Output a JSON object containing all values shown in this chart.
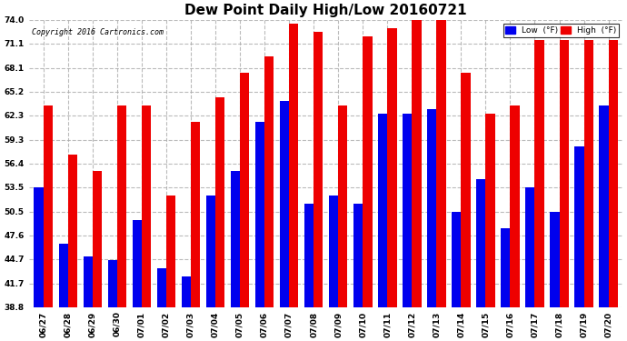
{
  "title": "Dew Point Daily High/Low 20160721",
  "copyright": "Copyright 2016 Cartronics.com",
  "categories": [
    "06/27",
    "06/28",
    "06/29",
    "06/30",
    "07/01",
    "07/02",
    "07/03",
    "07/04",
    "07/05",
    "07/06",
    "07/07",
    "07/08",
    "07/09",
    "07/10",
    "07/11",
    "07/12",
    "07/13",
    "07/14",
    "07/15",
    "07/16",
    "07/17",
    "07/18",
    "07/19",
    "07/20"
  ],
  "low_values": [
    53.5,
    46.5,
    45.0,
    44.5,
    49.5,
    43.5,
    42.5,
    52.5,
    55.5,
    61.5,
    64.0,
    51.5,
    52.5,
    51.5,
    62.5,
    62.5,
    63.0,
    50.5,
    54.5,
    48.5,
    53.5,
    50.5,
    58.5,
    63.5
  ],
  "high_values": [
    63.5,
    57.5,
    55.5,
    63.5,
    63.5,
    52.5,
    61.5,
    64.5,
    67.5,
    69.5,
    73.5,
    72.5,
    63.5,
    72.0,
    73.0,
    74.5,
    75.5,
    67.5,
    62.5,
    63.5,
    71.5,
    71.5,
    71.5,
    71.5
  ],
  "low_color": "#0000ee",
  "high_color": "#ee0000",
  "bg_color": "#ffffff",
  "ylim_min": 38.8,
  "ylim_max": 74.0,
  "yticks": [
    38.8,
    41.7,
    44.7,
    47.6,
    50.5,
    53.5,
    56.4,
    59.3,
    62.3,
    65.2,
    68.1,
    71.1,
    74.0
  ],
  "bar_width": 0.38,
  "title_fontsize": 11,
  "tick_fontsize": 6.5,
  "legend_label_low": "Low  (°F)",
  "legend_label_high": "High  (°F)"
}
